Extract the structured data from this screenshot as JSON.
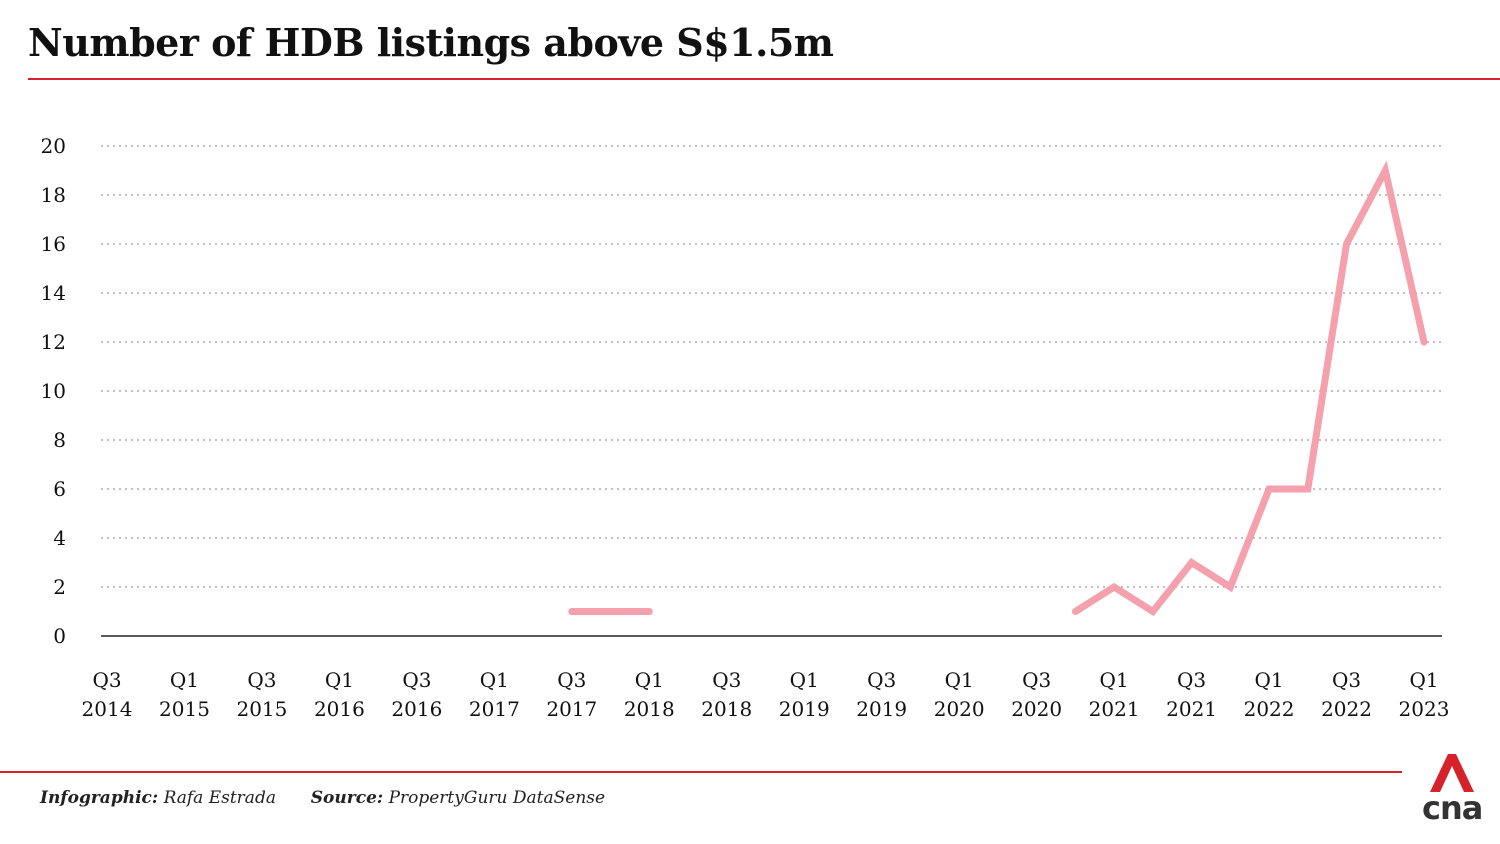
{
  "title": "Number of HDB listings above S$1.5m",
  "colors": {
    "accent": "#d6222b",
    "line": "#f4a0ad",
    "grid": "#9a9a9a",
    "text": "#111111"
  },
  "footer": {
    "infographic_label": "Infographic:",
    "infographic_value": "Rafa Estrada",
    "source_label": "Source:",
    "source_value": "PropertyGuru DataSense"
  },
  "logo": {
    "text": "cna",
    "icon": "cna-logo-icon"
  },
  "chart_data": {
    "type": "line",
    "title": "Number of HDB listings above S$1.5m",
    "xlabel": "",
    "ylabel": "",
    "ylim": [
      0,
      20
    ],
    "yticks": [
      0,
      2,
      4,
      6,
      8,
      10,
      12,
      14,
      16,
      18,
      20
    ],
    "grid": true,
    "x": [
      "Q3 2014",
      "Q4 2014",
      "Q1 2015",
      "Q2 2015",
      "Q3 2015",
      "Q4 2015",
      "Q1 2016",
      "Q2 2016",
      "Q3 2016",
      "Q4 2016",
      "Q1 2017",
      "Q2 2017",
      "Q3 2017",
      "Q4 2017",
      "Q1 2018",
      "Q2 2018",
      "Q3 2018",
      "Q4 2018",
      "Q1 2019",
      "Q2 2019",
      "Q3 2019",
      "Q4 2019",
      "Q1 2020",
      "Q2 2020",
      "Q3 2020",
      "Q4 2020",
      "Q1 2021",
      "Q2 2021",
      "Q3 2021",
      "Q4 2021",
      "Q1 2022",
      "Q2 2022",
      "Q3 2022",
      "Q4 2022",
      "Q1 2023"
    ],
    "x_tick_labels": [
      [
        "Q3",
        "2014"
      ],
      [
        "Q1",
        "2015"
      ],
      [
        "Q3",
        "2015"
      ],
      [
        "Q1",
        "2016"
      ],
      [
        "Q3",
        "2016"
      ],
      [
        "Q1",
        "2017"
      ],
      [
        "Q3",
        "2017"
      ],
      [
        "Q1",
        "2018"
      ],
      [
        "Q3",
        "2018"
      ],
      [
        "Q1",
        "2019"
      ],
      [
        "Q3",
        "2019"
      ],
      [
        "Q1",
        "2020"
      ],
      [
        "Q3",
        "2020"
      ],
      [
        "Q1",
        "2021"
      ],
      [
        "Q3",
        "2021"
      ],
      [
        "Q1",
        "2022"
      ],
      [
        "Q3",
        "2022"
      ],
      [
        "Q1",
        "2023"
      ]
    ],
    "x_tick_indices": [
      0,
      2,
      4,
      6,
      8,
      10,
      12,
      14,
      16,
      18,
      20,
      22,
      24,
      26,
      28,
      30,
      32,
      34
    ],
    "series": [
      {
        "values": [
          null,
          null,
          null,
          null,
          null,
          null,
          null,
          null,
          null,
          null,
          null,
          null,
          1,
          1,
          1,
          null,
          null,
          null,
          null,
          null,
          null,
          null,
          null,
          null,
          null,
          1,
          2,
          1,
          3,
          2,
          6,
          6,
          16,
          19,
          12
        ]
      }
    ]
  }
}
